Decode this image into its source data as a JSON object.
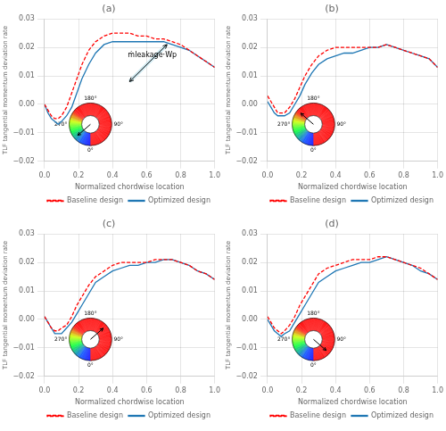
{
  "chart_data": [
    {
      "type": "line",
      "title": "(a)",
      "xlabel": "Normalized chordwise location",
      "ylabel": "TLF tangential momentum deviation rate",
      "x": [
        0.0,
        0.02,
        0.04,
        0.06,
        0.08,
        0.1,
        0.13,
        0.16,
        0.19,
        0.22,
        0.26,
        0.3,
        0.35,
        0.4,
        0.45,
        0.5,
        0.55,
        0.6,
        0.65,
        0.7,
        0.75,
        0.8,
        0.85,
        0.9,
        0.95,
        1.0
      ],
      "series": [
        {
          "name": "Baseline design",
          "color": "#ff0000",
          "line_style": "dashed",
          "values": [
            0.0,
            -0.002,
            -0.004,
            -0.005,
            -0.005,
            -0.004,
            -0.001,
            0.004,
            0.009,
            0.014,
            0.019,
            0.022,
            0.024,
            0.025,
            0.025,
            0.025,
            0.024,
            0.024,
            0.023,
            0.023,
            0.022,
            0.021,
            0.019,
            0.017,
            0.015,
            0.013
          ]
        },
        {
          "name": "Optimized design",
          "color": "#1f77b4",
          "line_style": "solid",
          "values": [
            0.0,
            -0.003,
            -0.005,
            -0.006,
            -0.007,
            -0.006,
            -0.004,
            -0.001,
            0.004,
            0.009,
            0.014,
            0.018,
            0.021,
            0.022,
            0.022,
            0.022,
            0.022,
            0.022,
            0.022,
            0.022,
            0.021,
            0.02,
            0.019,
            0.017,
            0.015,
            0.013
          ]
        }
      ],
      "xlim": [
        0,
        1
      ],
      "xticks": [
        {
          "value": 0.0,
          "label": "0.0"
        },
        0.2,
        0.4,
        0.6,
        0.8,
        {
          "value": 1.0,
          "label": "1.0"
        }
      ],
      "ylim": [
        -0.02,
        0.03
      ],
      "yticks": [
        {
          "value": -0.02,
          "label": "−0.02"
        },
        {
          "value": -0.01,
          "label": "−0.01"
        },
        {
          "value": 0.0,
          "label": "0.00"
        },
        0.01,
        0.02,
        0.03
      ],
      "grid": true,
      "legend": "lower right",
      "donut": {
        "angle": 49,
        "ticks": [
          {
            "value": 0,
            "label": "0°"
          },
          {
            "value": 90,
            "label": "90°"
          },
          {
            "value": 180,
            "label": "180°"
          },
          {
            "value": 270,
            "label": "270°"
          }
        ]
      },
      "arrows": [
        {
          "x": [
            0.5,
            0.72
          ],
          "y": [
            0.008,
            0.021
          ]
        }
      ],
      "annotations": [
        {
          "text": "ṁleakage·Wp",
          "x": 0.49,
          "y": 0.016
        }
      ]
    },
    {
      "type": "line",
      "title": "(b)",
      "xlabel": "Normalized chordwise location",
      "ylabel": "TLF tangential momentum deviation rate",
      "x": [
        0.0,
        0.02,
        0.04,
        0.06,
        0.08,
        0.1,
        0.13,
        0.16,
        0.19,
        0.22,
        0.26,
        0.3,
        0.35,
        0.4,
        0.45,
        0.5,
        0.55,
        0.6,
        0.65,
        0.7,
        0.75,
        0.8,
        0.85,
        0.9,
        0.95,
        1.0
      ],
      "series": [
        {
          "name": "Baseline design",
          "color": "#ff0000",
          "line_style": "dashed",
          "values": [
            0.003,
            0.001,
            -0.001,
            -0.003,
            -0.003,
            -0.003,
            -0.001,
            0.002,
            0.006,
            0.01,
            0.014,
            0.017,
            0.019,
            0.02,
            0.02,
            0.02,
            0.02,
            0.02,
            0.02,
            0.021,
            0.02,
            0.019,
            0.018,
            0.017,
            0.016,
            0.013
          ]
        },
        {
          "name": "Optimized design",
          "color": "#1f77b4",
          "line_style": "solid",
          "values": [
            0.001,
            -0.001,
            -0.003,
            -0.004,
            -0.004,
            -0.004,
            -0.003,
            0.0,
            0.003,
            0.007,
            0.011,
            0.014,
            0.016,
            0.017,
            0.018,
            0.018,
            0.019,
            0.02,
            0.02,
            0.021,
            0.02,
            0.019,
            0.018,
            0.017,
            0.016,
            0.013
          ]
        }
      ],
      "xlim": [
        0,
        1
      ],
      "xticks": [
        {
          "value": 0.0,
          "label": "0.0"
        },
        0.2,
        0.4,
        0.6,
        0.8,
        {
          "value": 1.0,
          "label": "1.0"
        }
      ],
      "ylim": [
        -0.02,
        0.03
      ],
      "yticks": [
        {
          "value": -0.02,
          "label": "−0.02"
        },
        {
          "value": -0.01,
          "label": "−0.01"
        },
        {
          "value": 0.0,
          "label": "0.00"
        },
        0.01,
        0.02,
        0.03
      ],
      "grid": true,
      "legend": "lower right",
      "donut": {
        "angle": 131,
        "ticks": [
          {
            "value": 0,
            "label": "0°"
          },
          {
            "value": 90,
            "label": "90°"
          },
          {
            "value": 180,
            "label": "180°"
          },
          {
            "value": 270,
            "label": "270°"
          }
        ]
      }
    },
    {
      "type": "line",
      "title": "(c)",
      "xlabel": "Normalized chordwise location",
      "ylabel": "TLF tangential momentum deviation rate",
      "x": [
        0.0,
        0.02,
        0.04,
        0.06,
        0.08,
        0.1,
        0.13,
        0.16,
        0.19,
        0.22,
        0.26,
        0.3,
        0.35,
        0.4,
        0.45,
        0.5,
        0.55,
        0.6,
        0.65,
        0.7,
        0.75,
        0.8,
        0.85,
        0.9,
        0.95,
        1.0
      ],
      "series": [
        {
          "name": "Baseline design",
          "color": "#ff0000",
          "line_style": "dashed",
          "values": [
            0.001,
            -0.001,
            -0.003,
            -0.004,
            -0.004,
            -0.003,
            -0.002,
            0.001,
            0.005,
            0.008,
            0.012,
            0.015,
            0.017,
            0.019,
            0.02,
            0.02,
            0.02,
            0.02,
            0.021,
            0.021,
            0.021,
            0.02,
            0.019,
            0.017,
            0.016,
            0.014
          ]
        },
        {
          "name": "Optimized design",
          "color": "#1f77b4",
          "line_style": "solid",
          "values": [
            0.001,
            -0.001,
            -0.003,
            -0.005,
            -0.005,
            -0.005,
            -0.003,
            -0.001,
            0.002,
            0.005,
            0.009,
            0.013,
            0.015,
            0.017,
            0.018,
            0.019,
            0.019,
            0.02,
            0.02,
            0.021,
            0.021,
            0.02,
            0.019,
            0.017,
            0.016,
            0.014
          ]
        }
      ],
      "xlim": [
        0,
        1
      ],
      "xticks": [
        {
          "value": 0.0,
          "label": "0.0"
        },
        0.2,
        0.4,
        0.6,
        0.8,
        {
          "value": 1.0,
          "label": "1.0"
        }
      ],
      "ylim": [
        -0.02,
        0.03
      ],
      "yticks": [
        {
          "value": -0.02,
          "label": "−0.02"
        },
        {
          "value": -0.01,
          "label": "−0.01"
        },
        {
          "value": 0.0,
          "label": "0.00"
        },
        0.01,
        0.02,
        0.03
      ],
      "grid": true,
      "legend": "lower right",
      "donut": {
        "angle": 229,
        "ticks": [
          {
            "value": 0,
            "label": "0°"
          },
          {
            "value": 90,
            "label": "90°"
          },
          {
            "value": 180,
            "label": "180°"
          },
          {
            "value": 270,
            "label": "270°"
          }
        ]
      }
    },
    {
      "type": "line",
      "title": "(d)",
      "xlabel": "Normalized chordwise location",
      "ylabel": "TLF tangential momentum deviation rate",
      "x": [
        0.0,
        0.02,
        0.04,
        0.06,
        0.08,
        0.1,
        0.13,
        0.16,
        0.19,
        0.22,
        0.26,
        0.3,
        0.35,
        0.4,
        0.45,
        0.5,
        0.55,
        0.6,
        0.65,
        0.7,
        0.75,
        0.8,
        0.85,
        0.9,
        0.95,
        1.0
      ],
      "series": [
        {
          "name": "Baseline design",
          "color": "#ff0000",
          "line_style": "dashed",
          "values": [
            0.001,
            -0.001,
            -0.003,
            -0.004,
            -0.005,
            -0.004,
            -0.002,
            0.001,
            0.005,
            0.008,
            0.012,
            0.016,
            0.018,
            0.019,
            0.02,
            0.021,
            0.021,
            0.021,
            0.022,
            0.022,
            0.021,
            0.02,
            0.019,
            0.018,
            0.016,
            0.014
          ]
        },
        {
          "name": "Optimized design",
          "color": "#1f77b4",
          "line_style": "solid",
          "values": [
            0.0,
            -0.002,
            -0.004,
            -0.005,
            -0.006,
            -0.005,
            -0.004,
            -0.001,
            0.002,
            0.005,
            0.009,
            0.013,
            0.015,
            0.017,
            0.018,
            0.019,
            0.02,
            0.02,
            0.021,
            0.022,
            0.021,
            0.02,
            0.019,
            0.017,
            0.016,
            0.014
          ]
        }
      ],
      "xlim": [
        0,
        1
      ],
      "xticks": [
        {
          "value": 0.0,
          "label": "0.0"
        },
        0.2,
        0.4,
        0.6,
        0.8,
        {
          "value": 1.0,
          "label": "1.0"
        }
      ],
      "ylim": [
        -0.02,
        0.03
      ],
      "yticks": [
        {
          "value": -0.02,
          "label": "−0.02"
        },
        {
          "value": -0.01,
          "label": "−0.01"
        },
        {
          "value": 0.0,
          "label": "0.00"
        },
        0.01,
        0.02,
        0.03
      ],
      "grid": true,
      "legend": "lower right",
      "donut": {
        "angle": 311,
        "ticks": [
          {
            "value": 0,
            "label": "0°"
          },
          {
            "value": 90,
            "label": "90°"
          },
          {
            "value": 180,
            "label": "180°"
          },
          {
            "value": 270,
            "label": "270°"
          }
        ]
      }
    }
  ]
}
